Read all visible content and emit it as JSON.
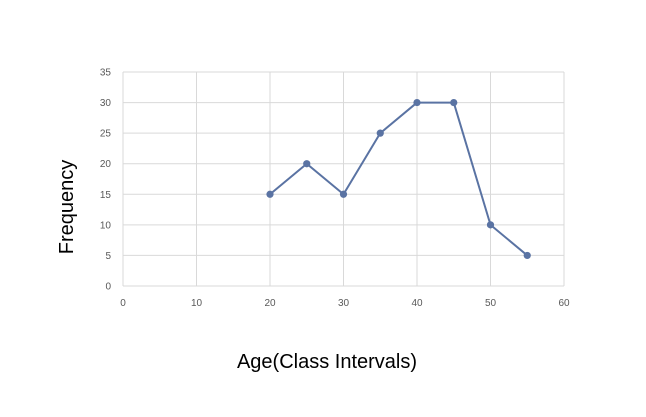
{
  "chart_data": {
    "type": "line",
    "title": "",
    "xlabel": "Age(Class Intervals)",
    "ylabel": "Frequency",
    "xlim": [
      0,
      60
    ],
    "ylim": [
      0,
      35
    ],
    "x_ticks": [
      0,
      10,
      20,
      30,
      40,
      50,
      60
    ],
    "y_ticks": [
      0,
      5,
      10,
      15,
      20,
      25,
      30,
      35
    ],
    "grid": true,
    "legend": "none",
    "series": [
      {
        "x": [
          20,
          25,
          30,
          35,
          40,
          45,
          50,
          55
        ],
        "y": [
          15,
          20,
          15,
          25,
          30,
          30,
          10,
          5
        ],
        "color": "#5a73a3",
        "markers": true
      }
    ]
  }
}
